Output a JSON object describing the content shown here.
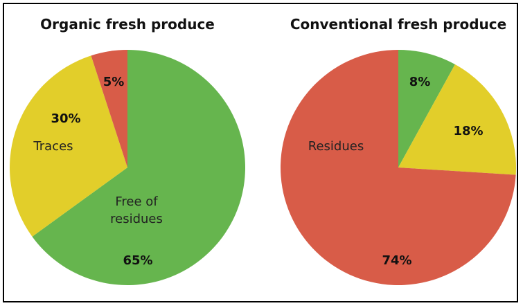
{
  "chart_data": [
    {
      "type": "pie",
      "title": "Organic fresh produce",
      "slices": [
        {
          "name": "free",
          "category_lines": [
            "Free of",
            "residues"
          ],
          "value": 65,
          "label": "65%",
          "color": "#66b54e"
        },
        {
          "name": "traces",
          "category_lines": [
            "Traces"
          ],
          "value": 30,
          "label": "30%",
          "color": "#e2ce2a"
        },
        {
          "name": "residues",
          "category_lines": [],
          "value": 5,
          "label": "5%",
          "color": "#d85c48"
        }
      ]
    },
    {
      "type": "pie",
      "title": "Conventional fresh produce",
      "slices": [
        {
          "name": "free",
          "category_lines": [],
          "value": 8,
          "label": "8%",
          "color": "#66b54e"
        },
        {
          "name": "traces",
          "category_lines": [],
          "value": 18,
          "label": "18%",
          "color": "#e2ce2a"
        },
        {
          "name": "residues",
          "category_lines": [
            "Residues"
          ],
          "value": 74,
          "label": "74%",
          "color": "#d85c48"
        }
      ]
    }
  ]
}
